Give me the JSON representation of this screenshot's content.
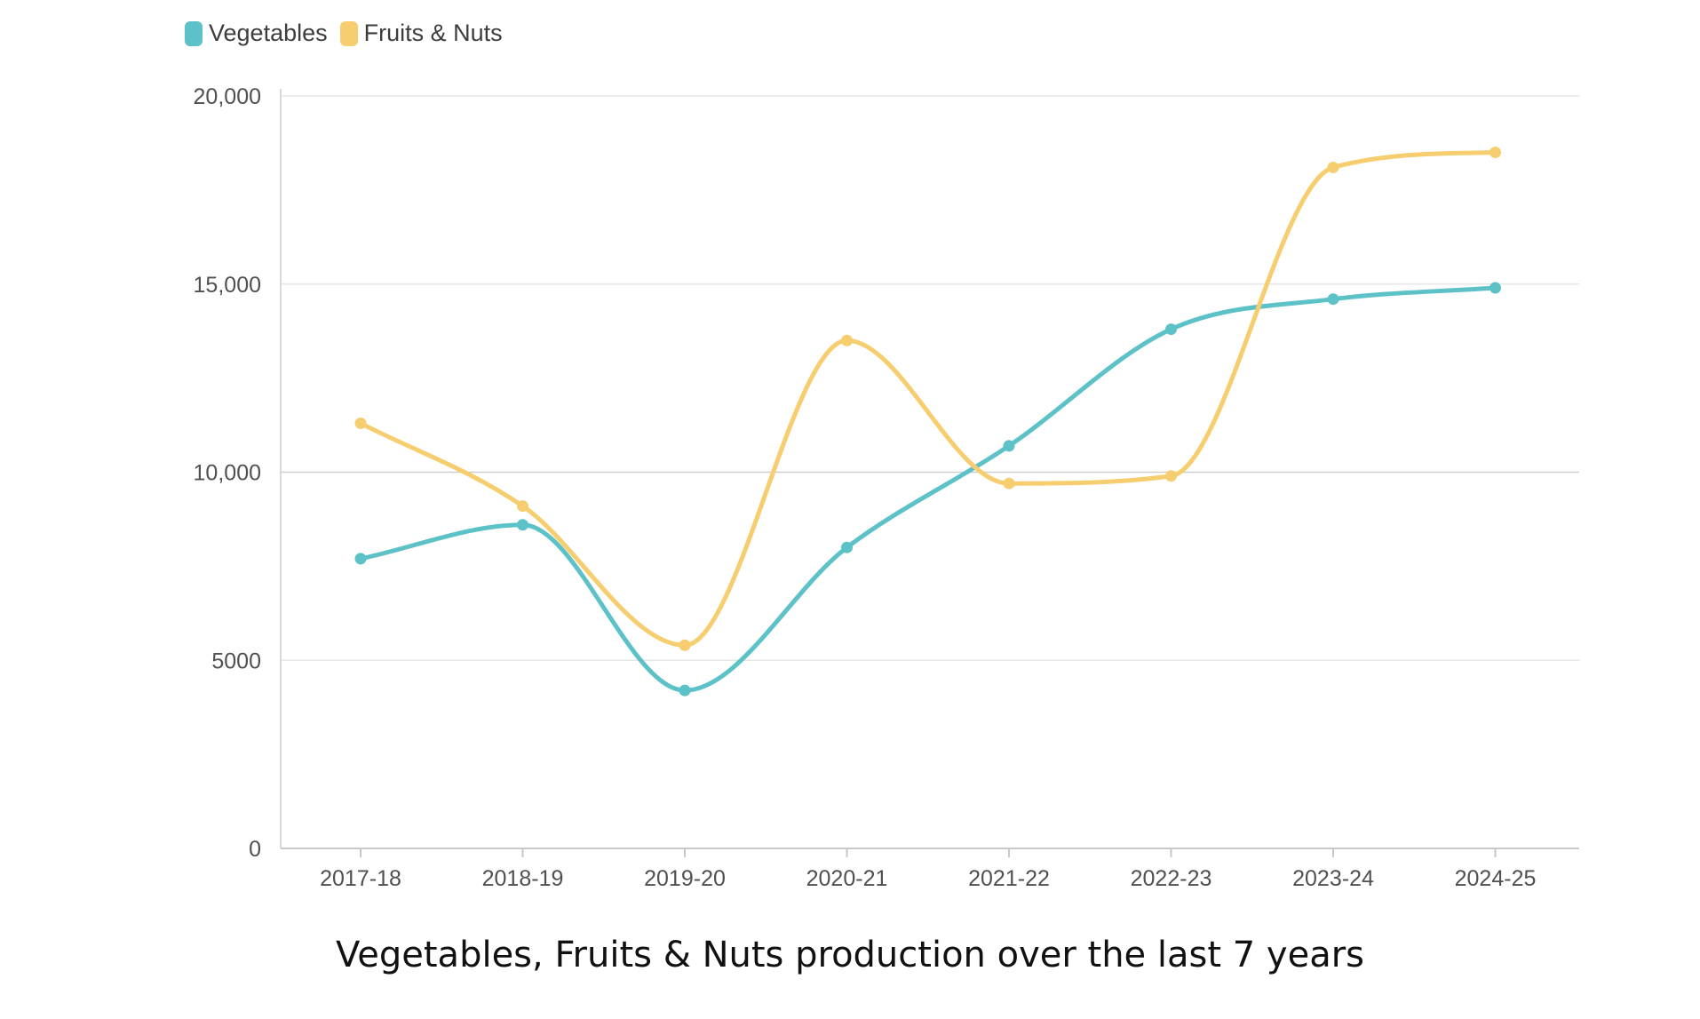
{
  "chart_data": {
    "type": "line",
    "title": "Vegetables, Fruits & Nuts production over the last 7 years",
    "xlabel": "",
    "ylabel": "",
    "categories": [
      "2017-18",
      "2018-19",
      "2019-20",
      "2020-21",
      "2021-22",
      "2022-23",
      "2023-24",
      "2024-25"
    ],
    "series": [
      {
        "name": "Vegetables",
        "color": "#5dc1c8",
        "values": [
          7700,
          8600,
          4200,
          8000,
          10700,
          13800,
          14600,
          14900
        ]
      },
      {
        "name": "Fruits & Nuts",
        "color": "#f6cd6f",
        "values": [
          11300,
          9100,
          5400,
          13500,
          9700,
          9900,
          18100,
          18500
        ]
      }
    ],
    "ylim": [
      0,
      20000
    ],
    "yticks": [
      {
        "value": 0,
        "label": "0"
      },
      {
        "value": 5000,
        "label": "5000"
      },
      {
        "value": 10000,
        "label": "10,000"
      },
      {
        "value": 15000,
        "label": "15,000"
      },
      {
        "value": 20000,
        "label": "20,000"
      }
    ],
    "grid": true,
    "legend_position": "top-left"
  }
}
